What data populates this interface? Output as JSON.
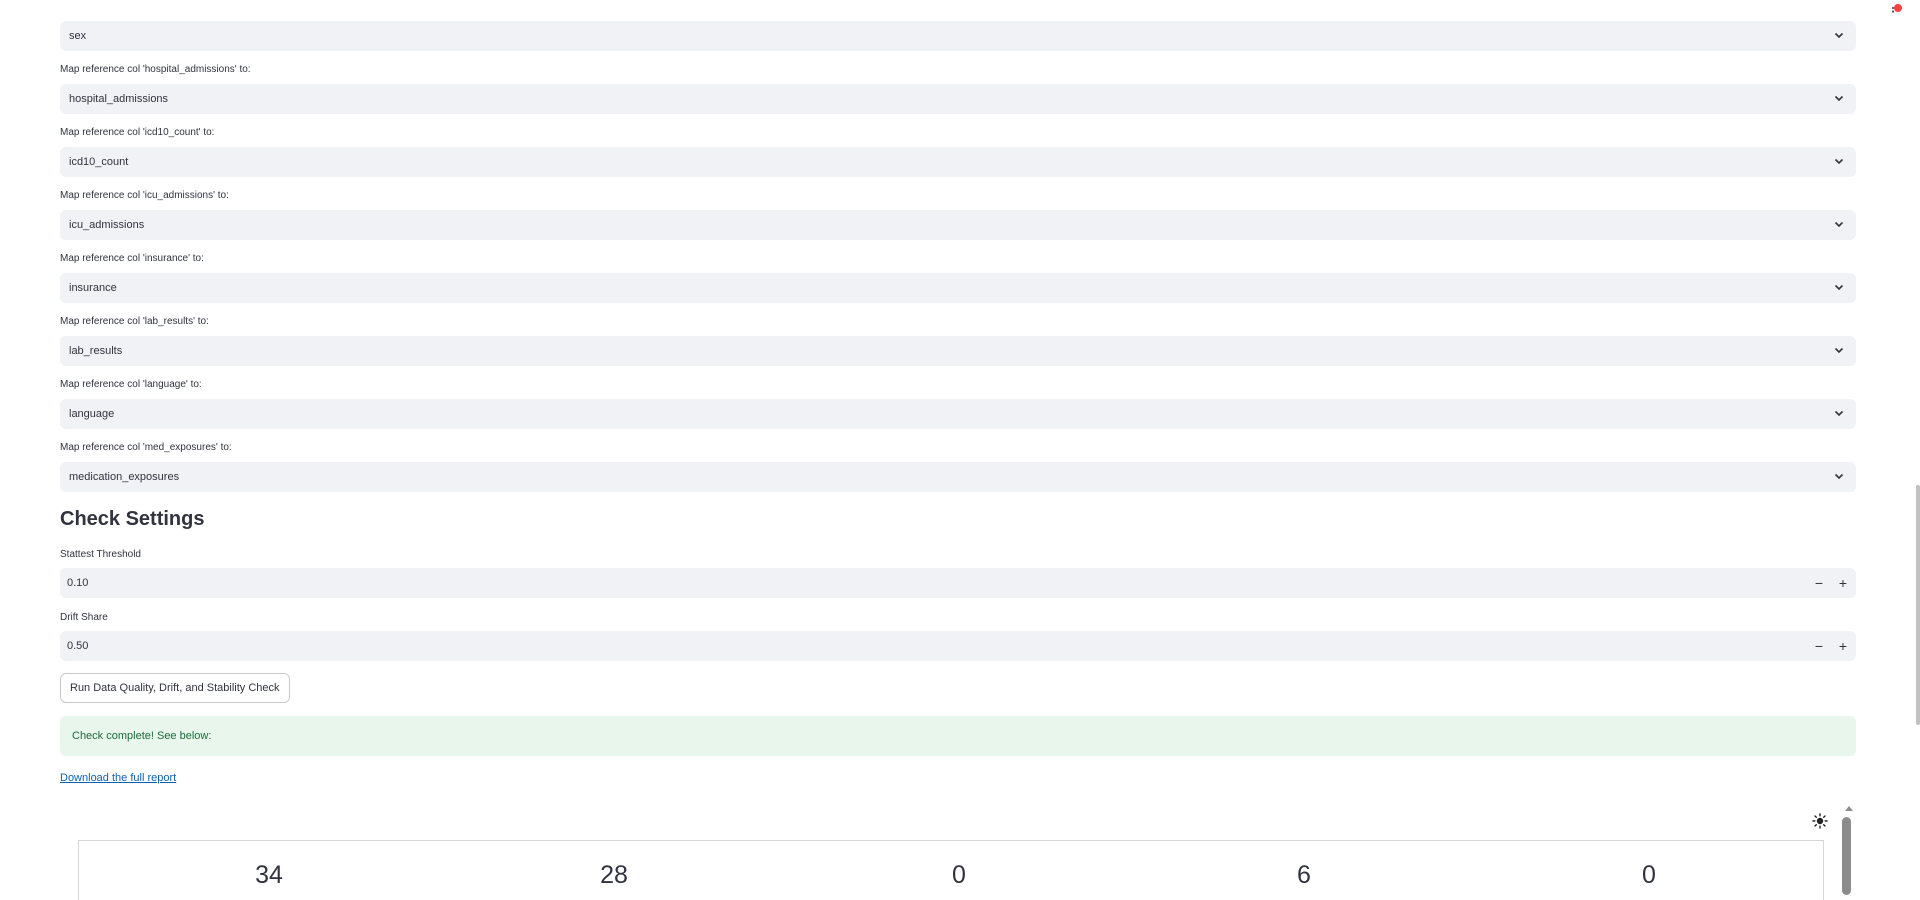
{
  "mappings": [
    {
      "label": "",
      "value": "sex"
    },
    {
      "label": "Map reference col 'hospital_admissions' to:",
      "value": "hospital_admissions"
    },
    {
      "label": "Map reference col 'icd10_count' to:",
      "value": "icd10_count"
    },
    {
      "label": "Map reference col 'icu_admissions' to:",
      "value": "icu_admissions"
    },
    {
      "label": "Map reference col 'insurance' to:",
      "value": "insurance"
    },
    {
      "label": "Map reference col 'lab_results' to:",
      "value": "lab_results"
    },
    {
      "label": "Map reference col 'language' to:",
      "value": "language"
    },
    {
      "label": "Map reference col 'med_exposures' to:",
      "value": "medication_exposures"
    }
  ],
  "check_settings": {
    "heading": "Check Settings",
    "stattest_label": "Stattest Threshold",
    "stattest_value": "0.10",
    "drift_label": "Drift Share",
    "drift_value": "0.50",
    "minus": "−",
    "plus": "+"
  },
  "run_button": "Run Data Quality, Drift, and Stability Check",
  "success_message": "Check complete! See below:",
  "download_link": "Download the full report",
  "report_metrics": [
    "34",
    "28",
    "0",
    "6",
    "0"
  ],
  "colors": {
    "input_bg": "#f0f2f6",
    "success_bg": "#e8f6ec",
    "success_text": "#1d6b3a",
    "link": "#0a62b5",
    "status_dot": "#ff2b2b"
  },
  "icons": {
    "select_chevron": "chevron-down-icon",
    "theme": "sun-icon",
    "status": "running-status-icon"
  }
}
